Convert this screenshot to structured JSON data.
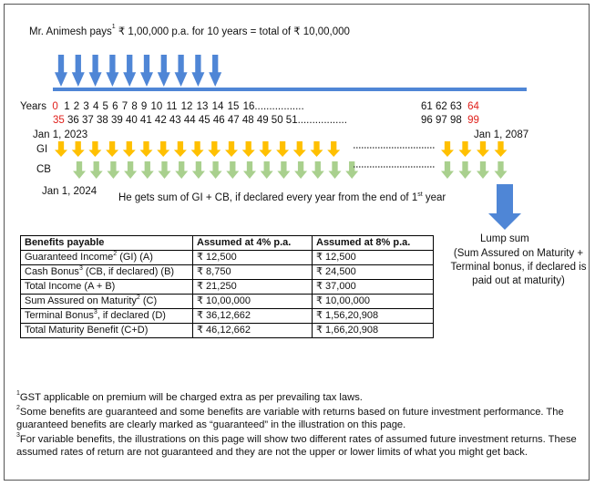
{
  "header_text": "Mr. Animesh pays¹ ₹ 1,00,000 p.a. for 10 years = total of ₹ 10,00,000",
  "header": {
    "pre": "Mr. Animesh pays",
    "sup": "1",
    "post": " ₹ 1,00,000 p.a. for 10 years = total of ₹ 10,00,000"
  },
  "timeline": {
    "years_label": "Years",
    "years_first": "0",
    "years_mid": "1  2  3  4  5  6  7  8  9  10  11  12 13  14  15 16.................",
    "years_tail": "61  62  63",
    "years_last": "64",
    "ages_first": "35",
    "ages_mid": "36 37 38 39 40 41 42 43 44 45 46  47 48  49  50 51.................",
    "ages_tail": "96  97  98",
    "ages_last": "99",
    "start_date": "Jan 1, 2023",
    "end_date": "Jan 1, 2087",
    "gi_label": "GI",
    "cb_label": "CB",
    "cb_start_date": "Jan 1, 2024",
    "payout_note_pre": "He gets sum of GI + CB, if declared every year from the end of 1",
    "payout_note_sup": "st",
    "payout_note_post": " year"
  },
  "lump_sum": {
    "title": "Lump sum",
    "desc": "(Sum Assured on Maturity + Terminal bonus, if declared is paid out at maturity)"
  },
  "table": {
    "headers": [
      "Benefits payable",
      "Assumed at 4% p.a.",
      "Assumed at 8% p.a."
    ],
    "rows": [
      {
        "label_pre": "Guaranteed Income",
        "sup": "2",
        "label_post": " (GI) (A)",
        "v4": "₹ 12,500",
        "v8": "₹ 12,500"
      },
      {
        "label_pre": "Cash Bonus",
        "sup": "3",
        "label_post": " (CB, if declared) (B)",
        "v4": "₹ 8,750",
        "v8": "₹ 24,500"
      },
      {
        "label_pre": "Total Income (A + B)",
        "sup": "",
        "label_post": "",
        "v4": "₹ 21,250",
        "v8": "₹ 37,000"
      },
      {
        "label_pre": "Sum Assured on Maturity",
        "sup": "2",
        "label_post": " (C)",
        "v4": "₹ 10,00,000",
        "v8": "₹ 10,00,000"
      },
      {
        "label_pre": "Terminal Bonus",
        "sup": "3",
        "label_post": ", if declared (D)",
        "v4": "₹  36,12,662",
        "v8": "₹ 1,56,20,908"
      },
      {
        "label_pre": "Total Maturity Benefit (C+D)",
        "sup": "",
        "label_post": "",
        "v4": "₹ 46,12,662",
        "v8": "₹ 1,66,20,908"
      }
    ]
  },
  "footnotes": [
    {
      "sup": "1",
      "text": "GST applicable on premium will be charged extra as per prevailing tax laws."
    },
    {
      "sup": "2",
      "text": "Some benefits are guaranteed and some benefits are variable with returns based on future investment performance. The guaranteed benefits are clearly marked as “guaranteed” in the illustration on this page."
    },
    {
      "sup": "3",
      "text": "For variable benefits, the illustrations on this page will show two different rates of assumed future investment returns. These assumed rates of return are not guaranteed and they are not the upper or lower limits of what you might get back."
    }
  ],
  "colors": {
    "blue": "#4f86d6",
    "gold": "#ffc000",
    "green": "#a9d08e",
    "red": "#e0201b"
  }
}
